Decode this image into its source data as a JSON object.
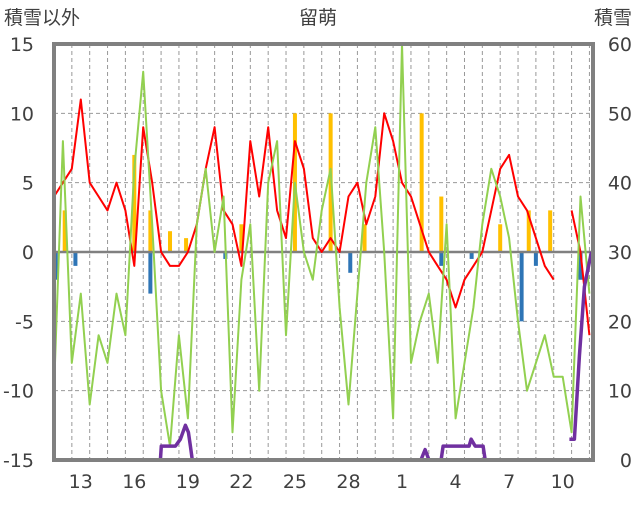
{
  "chart_data": {
    "type": "line",
    "title": "留萌",
    "ylabel_left": "積雪以外",
    "ylabel_right": "積雪",
    "ylim_left": [
      -15,
      15
    ],
    "ylim_right": [
      0,
      60
    ],
    "yticks_left": [
      15,
      10,
      5,
      0,
      -5,
      -10,
      -15
    ],
    "yticks_right": [
      60,
      50,
      40,
      30,
      20,
      10,
      0
    ],
    "x_unit": "day index from start of day 12 (0.5-day steps)",
    "xlim": [
      0,
      30.2
    ],
    "xtick_labels": [
      {
        "day": 1.5,
        "label": "13"
      },
      {
        "day": 4.5,
        "label": "16"
      },
      {
        "day": 7.5,
        "label": "19"
      },
      {
        "day": 10.5,
        "label": "22"
      },
      {
        "day": 13.5,
        "label": "25"
      },
      {
        "day": 16.5,
        "label": "28"
      },
      {
        "day": 19.5,
        "label": "1"
      },
      {
        "day": 22.5,
        "label": "4"
      },
      {
        "day": 25.5,
        "label": "7"
      },
      {
        "day": 28.5,
        "label": "10"
      }
    ],
    "grid": true,
    "series": [
      {
        "name": "red",
        "axis": "left",
        "color": "#ff0000",
        "step": 0.5,
        "values": [
          4,
          5,
          6,
          11,
          5,
          4,
          3,
          5,
          3,
          -1,
          9,
          5,
          0,
          -1,
          -1,
          0,
          2,
          6,
          9,
          3,
          2,
          -1,
          8,
          4,
          9,
          3,
          1,
          8,
          6,
          1,
          0,
          1,
          0,
          4,
          5,
          2,
          4,
          10,
          8,
          5,
          4,
          2,
          0,
          -1,
          -2,
          -4,
          -2,
          -1,
          0,
          3,
          6,
          7,
          4,
          3,
          1,
          -1,
          -2,
          null,
          3,
          0,
          -6
        ]
      },
      {
        "name": "green",
        "axis": "left",
        "color": "#92d050",
        "step": 0.5,
        "values": [
          -10,
          8,
          -8,
          -3,
          -11,
          -6,
          -8,
          -3,
          -6,
          6,
          13,
          2,
          -10,
          -14,
          -6,
          -12,
          2,
          6,
          0,
          4,
          -13,
          -2,
          2,
          -10,
          5,
          8,
          -6,
          5,
          0,
          -2,
          3,
          6,
          -4,
          -11,
          -3,
          5,
          9,
          0,
          -12,
          15,
          -8,
          -5,
          -3,
          -8,
          2,
          -12,
          -8,
          -4,
          2,
          6,
          4,
          1,
          -5,
          -10,
          -8,
          -6,
          -9,
          -9,
          -13,
          4,
          -3
        ]
      },
      {
        "name": "orange-bars",
        "axis": "left",
        "color": "#ffc000",
        "points": [
          [
            0.6,
            3
          ],
          [
            4.5,
            7
          ],
          [
            5.4,
            3
          ],
          [
            6.5,
            1.5
          ],
          [
            7.4,
            1
          ],
          [
            10.5,
            2
          ],
          [
            13.5,
            10
          ],
          [
            15.5,
            10
          ],
          [
            17.4,
            2
          ],
          [
            20.6,
            10
          ],
          [
            21.7,
            4
          ],
          [
            25,
            2
          ],
          [
            26.6,
            3
          ],
          [
            27.8,
            3
          ]
        ]
      },
      {
        "name": "blue-bars",
        "axis": "left",
        "color": "#2e75b6",
        "points": [
          [
            0.1,
            -2
          ],
          [
            1.2,
            -1
          ],
          [
            5.4,
            -3
          ],
          [
            9.6,
            -0.5
          ],
          [
            16.6,
            -1.5
          ],
          [
            21.7,
            -1
          ],
          [
            23.4,
            -0.5
          ],
          [
            26.2,
            -5
          ],
          [
            27,
            -1
          ],
          [
            29.5,
            -2
          ]
        ]
      },
      {
        "name": "purple-snow-depth",
        "axis": "right",
        "color": "#7030a0",
        "points": [
          [
            0,
            0
          ],
          [
            4.55,
            0
          ],
          null,
          [
            5.28,
            0
          ],
          [
            5.96,
            0
          ],
          [
            6.01,
            2
          ],
          [
            6.8,
            2
          ],
          [
            7.08,
            3
          ],
          [
            7.36,
            5
          ],
          [
            7.53,
            4
          ],
          [
            7.64,
            2
          ],
          [
            7.75,
            0
          ],
          [
            20.56,
            0
          ],
          [
            20.79,
            1.5
          ],
          [
            21.01,
            0
          ],
          [
            21.69,
            0
          ],
          [
            21.8,
            2
          ],
          [
            23.26,
            2
          ],
          [
            23.37,
            3
          ],
          [
            23.6,
            2
          ],
          [
            24.04,
            2
          ],
          [
            24.16,
            0
          ],
          [
            28.03,
            0
          ],
          null,
          [
            28.88,
            3
          ],
          [
            29.16,
            3
          ],
          [
            29.44,
            15
          ],
          [
            29.72,
            25
          ],
          [
            30.11,
            30
          ]
        ]
      }
    ]
  }
}
